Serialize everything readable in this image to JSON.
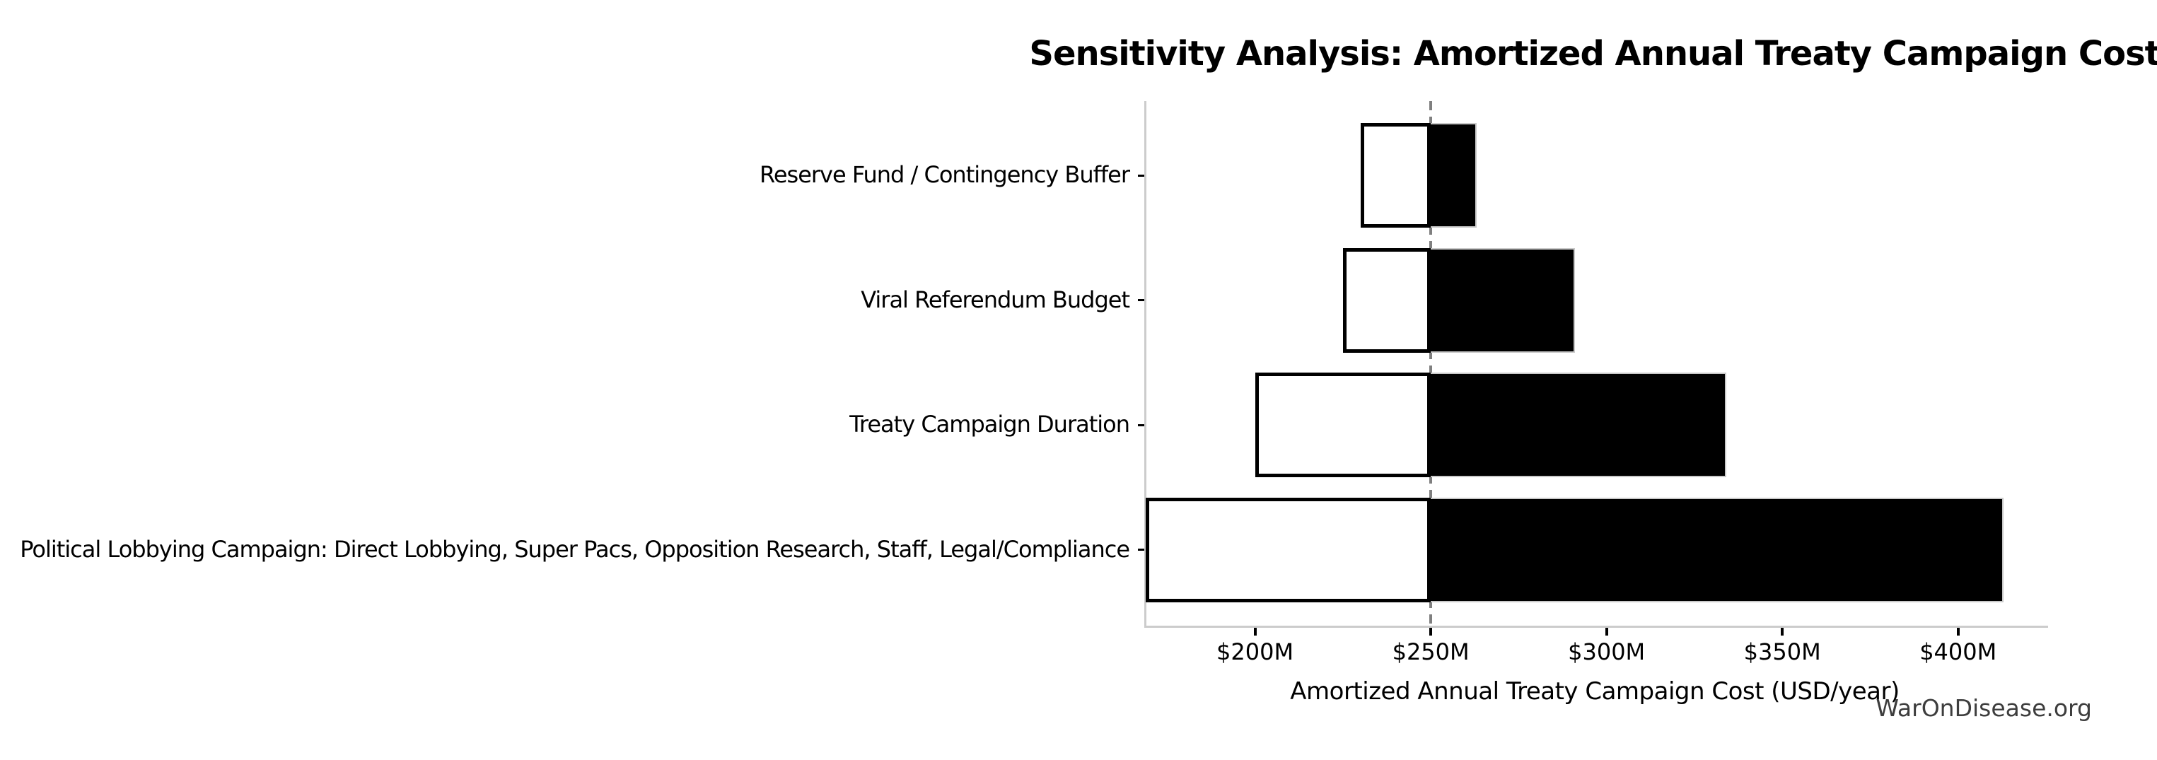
{
  "watermark": "WarOnDisease.org",
  "colors": {
    "bar_high_fill": "#000000",
    "bar_high_edge": "#c9c9c9",
    "bar_low_fill": "#ffffff",
    "bar_low_edge": "#000000",
    "spine": "#cccccc",
    "baseline_line": "#7f7f7f",
    "watermark_text": "#3d3d3d"
  },
  "chart_data": {
    "type": "bar",
    "subtype": "tornado-sensitivity",
    "orientation": "horizontal",
    "title": "Sensitivity Analysis: Amortized Annual Treaty Campaign Cost",
    "xlabel": "Amortized Annual Treaty Campaign Cost (USD/year)",
    "ylabel": "",
    "grid": false,
    "legend": false,
    "xlim": [
      168.5,
      425
    ],
    "baseline_value": 250,
    "xticks": [
      {
        "value": 200,
        "label": "$200M"
      },
      {
        "value": 250,
        "label": "$250M"
      },
      {
        "value": 300,
        "label": "$300M"
      },
      {
        "value": 350,
        "label": "$350M"
      },
      {
        "value": 400,
        "label": "$400M"
      }
    ],
    "categories": [
      "Reserve Fund / Contingency Buffer",
      "Viral Referendum Budget",
      "Treaty Campaign Duration",
      "Political Lobbying Campaign: Direct Lobbying, Super Pacs, Opposition Research, Staff, Legal/Compliance"
    ],
    "series": [
      {
        "name": "low_case_cost_musd",
        "values": [
          230,
          225,
          200,
          169
        ]
      },
      {
        "name": "high_case_cost_musd",
        "values": [
          263,
          291,
          334,
          413
        ]
      }
    ]
  }
}
